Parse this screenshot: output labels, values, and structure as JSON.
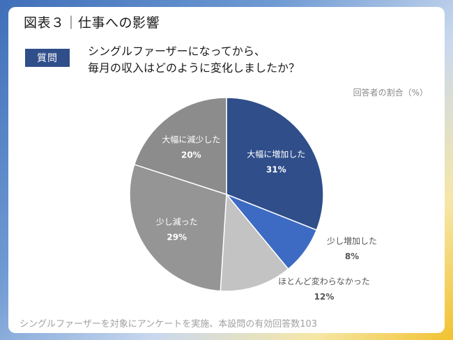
{
  "header": {
    "title": "図表３｜仕事への影響",
    "badge": "質問",
    "question_line1": "シングルファーザーになってから、",
    "question_line2": "毎月の収入はどのように変化しましたか？",
    "unit": "回答者の割合（%）"
  },
  "footnote": "シングルファーザーを対象にアンケートを実施、本設問の有効回答数103",
  "chart_data": {
    "type": "pie",
    "start": "12 o'clock, clockwise",
    "slices": [
      {
        "label": "大幅に増加した",
        "value": 31,
        "value_label": "31%",
        "color": "#2f4e8a",
        "label_color": "#ffffff",
        "label_position": "inside"
      },
      {
        "label": "少し増加した",
        "value": 8,
        "value_label": "8%",
        "color": "#3d6bc4",
        "label_color": "#555555",
        "label_position": "outside"
      },
      {
        "label": "ほとんど変わらなかった",
        "value": 12,
        "value_label": "12%",
        "color": "#c3c3c3",
        "label_color": "#555555",
        "label_position": "outside"
      },
      {
        "label": "少し減った",
        "value": 29,
        "value_label": "29%",
        "color": "#959595",
        "label_color": "#ffffff",
        "label_position": "inside"
      },
      {
        "label": "大幅に減少した",
        "value": 20,
        "value_label": "20%",
        "color": "#8c8c8c",
        "label_color": "#ffffff",
        "label_position": "inside"
      }
    ]
  }
}
